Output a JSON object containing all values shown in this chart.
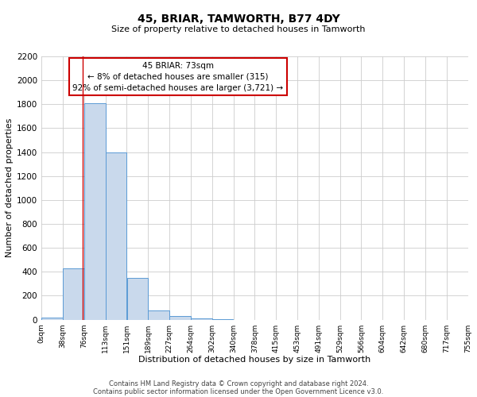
{
  "title": "45, BRIAR, TAMWORTH, B77 4DY",
  "subtitle": "Size of property relative to detached houses in Tamworth",
  "xlabel": "Distribution of detached houses by size in Tamworth",
  "ylabel": "Number of detached properties",
  "bar_color": "#c9d9ec",
  "bar_edge_color": "#5b9bd5",
  "background_color": "#ffffff",
  "grid_color": "#cccccc",
  "marker_value": 73,
  "marker_color": "#cc0000",
  "bin_width": 38,
  "bin_starts": [
    0,
    38,
    76,
    114,
    152,
    190,
    228,
    266,
    304,
    342,
    380,
    418,
    456,
    494,
    532,
    570,
    608,
    646,
    684,
    722
  ],
  "bin_counts": [
    20,
    430,
    1810,
    1400,
    350,
    80,
    30,
    10,
    5,
    0,
    0,
    0,
    0,
    0,
    0,
    0,
    0,
    0,
    0,
    0
  ],
  "x_tick_labels": [
    "0sqm",
    "38sqm",
    "76sqm",
    "113sqm",
    "151sqm",
    "189sqm",
    "227sqm",
    "264sqm",
    "302sqm",
    "340sqm",
    "378sqm",
    "415sqm",
    "453sqm",
    "491sqm",
    "529sqm",
    "566sqm",
    "604sqm",
    "642sqm",
    "680sqm",
    "717sqm",
    "755sqm"
  ],
  "ylim": [
    0,
    2200
  ],
  "yticks": [
    0,
    200,
    400,
    600,
    800,
    1000,
    1200,
    1400,
    1600,
    1800,
    2000,
    2200
  ],
  "annotation_text": "45 BRIAR: 73sqm\n← 8% of detached houses are smaller (315)\n92% of semi-detached houses are larger (3,721) →",
  "annotation_box_color": "#ffffff",
  "annotation_box_edge": "#cc0000",
  "footer_line1": "Contains HM Land Registry data © Crown copyright and database right 2024.",
  "footer_line2": "Contains public sector information licensed under the Open Government Licence v3.0."
}
